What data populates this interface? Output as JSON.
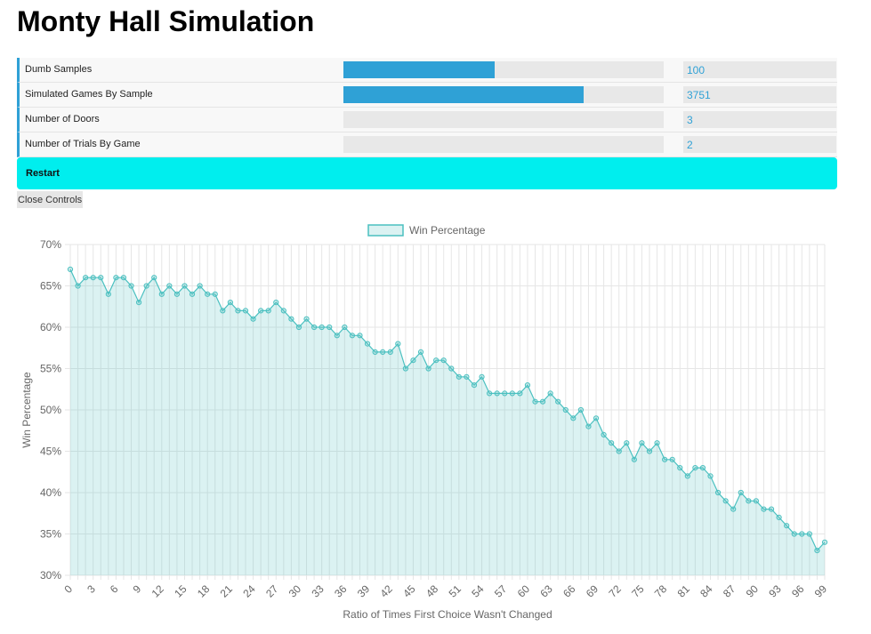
{
  "page": {
    "title": "Monty Hall Simulation"
  },
  "controls": {
    "rows": [
      {
        "label": "Dumb Samples",
        "value": "100",
        "fill": 0.472
      },
      {
        "label": "Simulated Games By Sample",
        "value": "3751",
        "fill": 0.75
      },
      {
        "label": "Number of Doors",
        "value": "3",
        "fill": 0.0
      },
      {
        "label": "Number of Trials By Game",
        "value": "2",
        "fill": 0.0
      }
    ],
    "restart_label": "Restart",
    "close_label": "Close Controls"
  },
  "colors": {
    "accent": "#2fa1d6",
    "restart": "#00eeee",
    "series_line": "#4bc0c0",
    "series_fill": "rgba(75,192,192,0.2)"
  },
  "chart_data": {
    "type": "line",
    "xlabel": "Ratio of Times First Choice Wasn't Changed",
    "ylabel": "Win Percentage",
    "ylim": [
      30,
      70
    ],
    "y_ticks": [
      "30%",
      "35%",
      "40%",
      "45%",
      "50%",
      "55%",
      "60%",
      "65%",
      "70%"
    ],
    "x_tick_labels": [
      "0",
      "3",
      "6",
      "9",
      "12",
      "15",
      "18",
      "21",
      "24",
      "27",
      "30",
      "33",
      "36",
      "39",
      "42",
      "45",
      "48",
      "51",
      "54",
      "57",
      "60",
      "63",
      "66",
      "69",
      "72",
      "75",
      "78",
      "81",
      "84",
      "87",
      "90",
      "93",
      "96",
      "99"
    ],
    "legend": "top",
    "grid": true,
    "series": [
      {
        "name": "Win Percentage",
        "x": [
          0,
          1,
          2,
          3,
          4,
          5,
          6,
          7,
          8,
          9,
          10,
          11,
          12,
          13,
          14,
          15,
          16,
          17,
          18,
          19,
          20,
          21,
          22,
          23,
          24,
          25,
          26,
          27,
          28,
          29,
          30,
          31,
          32,
          33,
          34,
          35,
          36,
          37,
          38,
          39,
          40,
          41,
          42,
          43,
          44,
          45,
          46,
          47,
          48,
          49,
          50,
          51,
          52,
          53,
          54,
          55,
          56,
          57,
          58,
          59,
          60,
          61,
          62,
          63,
          64,
          65,
          66,
          67,
          68,
          69,
          70,
          71,
          72,
          73,
          74,
          75,
          76,
          77,
          78,
          79,
          80,
          81,
          82,
          83,
          84,
          85,
          86,
          87,
          88,
          89,
          90,
          91,
          92,
          93,
          94,
          95,
          96,
          97,
          98,
          99
        ],
        "values": [
          67,
          65,
          66,
          66,
          66,
          64,
          66,
          66,
          65,
          63,
          65,
          66,
          64,
          65,
          64,
          65,
          64,
          65,
          64,
          64,
          62,
          63,
          62,
          62,
          61,
          62,
          62,
          63,
          62,
          61,
          60,
          61,
          60,
          60,
          60,
          59,
          60,
          59,
          59,
          58,
          57,
          57,
          57,
          58,
          55,
          56,
          57,
          55,
          56,
          56,
          55,
          54,
          54,
          53,
          54,
          52,
          52,
          52,
          52,
          52,
          53,
          51,
          51,
          52,
          51,
          50,
          49,
          50,
          48,
          49,
          47,
          46,
          45,
          46,
          44,
          46,
          45,
          46,
          44,
          44,
          43,
          42,
          43,
          43,
          42,
          40,
          39,
          38,
          40,
          39,
          39,
          38,
          38,
          37,
          36,
          35,
          35,
          35,
          33,
          34
        ]
      }
    ]
  }
}
